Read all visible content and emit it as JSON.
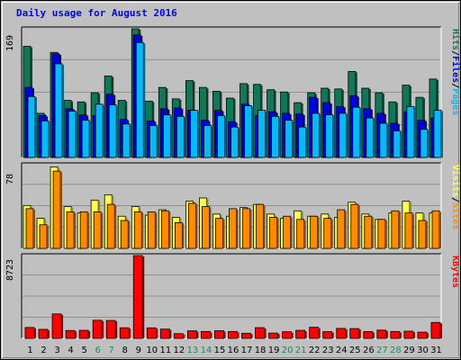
{
  "title": "Daily usage for August 2016",
  "colors": {
    "hits": "#107859",
    "files": "#0000e0",
    "pages": "#08b8f8",
    "visits": "#ffff50",
    "sites": "#ff8c00",
    "kbytes": "#ff0000",
    "weekend_label": "#1e8a5e",
    "weekday_label": "#000000",
    "plot_bg": "#c0c0c0",
    "frame_bg": "#c0c0c0"
  },
  "chart_data": [
    {
      "type": "bar",
      "name": "hits-files-pages",
      "ymax_label": "169",
      "ylim": [
        0,
        169
      ],
      "right_labels": [
        "Pages",
        "/",
        "Files",
        "/",
        "Hits"
      ],
      "categories": [
        "1",
        "2",
        "3",
        "4",
        "5",
        "6",
        "7",
        "8",
        "9",
        "10",
        "11",
        "12",
        "13",
        "14",
        "15",
        "16",
        "17",
        "18",
        "19",
        "20",
        "21",
        "22",
        "23",
        "24",
        "25",
        "26",
        "27",
        "28",
        "29",
        "30",
        "31"
      ],
      "series": [
        {
          "name": "Hits",
          "values": [
            146,
            58,
            138,
            75,
            73,
            85,
            107,
            75,
            169,
            74,
            92,
            77,
            101,
            92,
            87,
            78,
            97,
            96,
            89,
            86,
            72,
            85,
            91,
            90,
            113,
            91,
            85,
            73,
            95,
            79,
            103
          ]
        },
        {
          "name": "Files",
          "values": [
            92,
            55,
            136,
            64,
            56,
            55,
            83,
            50,
            161,
            48,
            64,
            65,
            62,
            49,
            62,
            47,
            70,
            55,
            60,
            58,
            57,
            79,
            72,
            67,
            81,
            64,
            58,
            45,
            60,
            49,
            52
          ]
        },
        {
          "name": "Pages",
          "values": [
            80,
            48,
            123,
            61,
            49,
            70,
            69,
            44,
            151,
            42,
            56,
            54,
            62,
            42,
            55,
            40,
            68,
            62,
            54,
            49,
            40,
            58,
            56,
            58,
            66,
            52,
            45,
            35,
            67,
            37,
            62
          ]
        }
      ]
    },
    {
      "type": "bar",
      "name": "visits-sites",
      "ymax_label": "78",
      "ylim": [
        0,
        78
      ],
      "right_labels": [
        "Sites",
        "/",
        "Visits"
      ],
      "categories": [
        "1",
        "2",
        "3",
        "4",
        "5",
        "6",
        "7",
        "8",
        "9",
        "10",
        "11",
        "12",
        "13",
        "14",
        "15",
        "16",
        "17",
        "18",
        "19",
        "20",
        "21",
        "22",
        "23",
        "24",
        "25",
        "26",
        "27",
        "28",
        "29",
        "30",
        "31"
      ],
      "series": [
        {
          "name": "Visits",
          "values": [
            40,
            28,
            76,
            39,
            33,
            45,
            50,
            30,
            39,
            31,
            36,
            29,
            44,
            47,
            32,
            30,
            38,
            41,
            32,
            28,
            35,
            30,
            32,
            29,
            43,
            32,
            27,
            33,
            44,
            33,
            33
          ]
        },
        {
          "name": "Sites",
          "values": [
            37,
            22,
            72,
            34,
            34,
            34,
            41,
            26,
            34,
            34,
            35,
            24,
            42,
            39,
            28,
            37,
            37,
            41,
            29,
            30,
            27,
            30,
            28,
            36,
            41,
            30,
            27,
            35,
            33,
            26,
            35
          ]
        }
      ]
    },
    {
      "type": "bar",
      "name": "kbytes",
      "ymax_label": "8723",
      "ylim": [
        0,
        8723
      ],
      "right_labels": [
        "KBytes"
      ],
      "categories": [
        "1",
        "2",
        "3",
        "4",
        "5",
        "6",
        "7",
        "8",
        "9",
        "10",
        "11",
        "12",
        "13",
        "14",
        "15",
        "16",
        "17",
        "18",
        "19",
        "20",
        "21",
        "22",
        "23",
        "24",
        "25",
        "26",
        "27",
        "28",
        "29",
        "30",
        "31"
      ],
      "series": [
        {
          "name": "KBytes",
          "values": [
            1150,
            950,
            2580,
            830,
            850,
            1910,
            1890,
            1120,
            8723,
            1110,
            980,
            500,
            800,
            730,
            810,
            730,
            540,
            1130,
            560,
            700,
            850,
            1170,
            710,
            1050,
            1030,
            720,
            870,
            730,
            760,
            660,
            1680
          ]
        }
      ]
    }
  ],
  "x_labels": [
    {
      "text": "1",
      "weekend": false
    },
    {
      "text": "2",
      "weekend": false
    },
    {
      "text": "3",
      "weekend": false
    },
    {
      "text": "4",
      "weekend": false
    },
    {
      "text": "5",
      "weekend": false
    },
    {
      "text": "6",
      "weekend": true
    },
    {
      "text": "7",
      "weekend": true
    },
    {
      "text": "8",
      "weekend": false
    },
    {
      "text": "9",
      "weekend": false
    },
    {
      "text": "10",
      "weekend": false
    },
    {
      "text": "11",
      "weekend": false
    },
    {
      "text": "12",
      "weekend": false
    },
    {
      "text": "13",
      "weekend": true
    },
    {
      "text": "14",
      "weekend": true
    },
    {
      "text": "15",
      "weekend": false
    },
    {
      "text": "16",
      "weekend": false
    },
    {
      "text": "17",
      "weekend": false
    },
    {
      "text": "18",
      "weekend": false
    },
    {
      "text": "19",
      "weekend": false
    },
    {
      "text": "20",
      "weekend": true
    },
    {
      "text": "21",
      "weekend": true
    },
    {
      "text": "22",
      "weekend": false
    },
    {
      "text": "23",
      "weekend": false
    },
    {
      "text": "24",
      "weekend": false
    },
    {
      "text": "25",
      "weekend": false
    },
    {
      "text": "26",
      "weekend": false
    },
    {
      "text": "27",
      "weekend": true
    },
    {
      "text": "28",
      "weekend": true
    },
    {
      "text": "29",
      "weekend": false
    },
    {
      "text": "30",
      "weekend": false
    },
    {
      "text": "31",
      "weekend": false
    }
  ]
}
